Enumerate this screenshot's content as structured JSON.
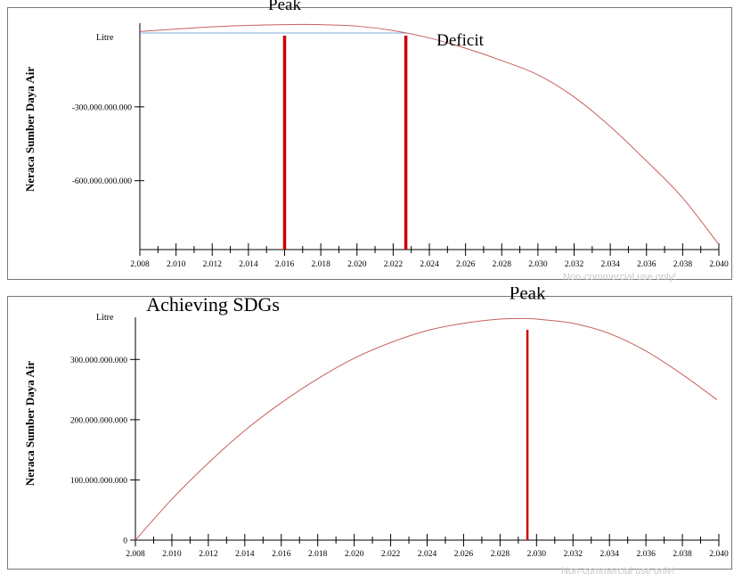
{
  "chart_data": [
    {
      "type": "line",
      "panel": "top",
      "title": "",
      "ylabel": "Neraca Sumber Daya Air",
      "unit_label": "Litre",
      "xlim": [
        2008,
        2040
      ],
      "ylim": [
        -880000000000,
        40000000000
      ],
      "x_ticks": [
        "2.008",
        "2.010",
        "2.012",
        "2.014",
        "2.016",
        "2.018",
        "2.020",
        "2.022",
        "2.024",
        "2.026",
        "2.028",
        "2.030",
        "2.032",
        "2.034",
        "2.036",
        "2.038",
        "2.040"
      ],
      "y_ticks": [
        {
          "value": -300000000000,
          "label": "-300.000.000.000"
        },
        {
          "value": -600000000000,
          "label": "-600.000.000.000"
        }
      ],
      "series": [
        {
          "x": [
            2008,
            2010,
            2012,
            2014,
            2016,
            2017,
            2018,
            2020,
            2022,
            2024,
            2026,
            2028,
            2030,
            2032,
            2034,
            2036,
            2038,
            2040
          ],
          "y": [
            6000000000,
            16000000000,
            25000000000,
            31000000000,
            34000000000,
            35000000000,
            34000000000,
            28000000000,
            10000000000,
            -20000000000,
            -62000000000,
            -112000000000,
            -170000000000,
            -260000000000,
            -380000000000,
            -520000000000,
            -670000000000,
            -860000000000
          ]
        }
      ],
      "reference_lines": [
        {
          "type": "horizontal",
          "y": 0,
          "x_from": 2008,
          "x_to": 2022.7
        }
      ],
      "vertical_markers": [
        2016,
        2022.7
      ],
      "annotations": [
        {
          "text": "Peak",
          "x": 2016,
          "y": 95000000000
        },
        {
          "text": "Deficit",
          "x": 2024.4,
          "y": -50000000000
        }
      ],
      "watermark": "Non-commercial use only!"
    },
    {
      "type": "line",
      "panel": "bottom",
      "title": "",
      "ylabel": "Neraca Sumber Daya Air",
      "unit_label": "Litre",
      "xlim": [
        2008,
        2040
      ],
      "ylim": [
        0,
        370000000000
      ],
      "x_ticks": [
        "2.008",
        "2.010",
        "2.012",
        "2.014",
        "2.016",
        "2.018",
        "2.020",
        "2.022",
        "2.024",
        "2.026",
        "2.028",
        "2.030",
        "2.032",
        "2.034",
        "2.036",
        "2.038",
        "2.040"
      ],
      "y_ticks": [
        {
          "value": 0,
          "label": "0"
        },
        {
          "value": 100000000000,
          "label": "100.000.000.000"
        },
        {
          "value": 200000000000,
          "label": "200.000.000.000"
        },
        {
          "value": 300000000000,
          "label": "300.000.000.000"
        }
      ],
      "series": [
        {
          "x": [
            2008,
            2010,
            2012,
            2014,
            2016,
            2018,
            2020,
            2022,
            2024,
            2026,
            2028,
            2029.5,
            2030,
            2032,
            2034,
            2036,
            2038,
            2039.9
          ],
          "y": [
            0,
            68000000000,
            128000000000,
            182000000000,
            228000000000,
            268000000000,
            302000000000,
            328000000000,
            348000000000,
            360000000000,
            367000000000,
            368000000000,
            367000000000,
            360000000000,
            343000000000,
            314000000000,
            275000000000,
            233000000000
          ]
        }
      ],
      "vertical_markers": [
        2029.5
      ],
      "annotations": [
        {
          "text": "Achieving SDGs",
          "x": 2008.6,
          "y": 380000000000
        },
        {
          "text": "Peak",
          "x": 2029.5,
          "y": 400000000000
        }
      ],
      "watermark": "Non-commercial use only!"
    }
  ]
}
